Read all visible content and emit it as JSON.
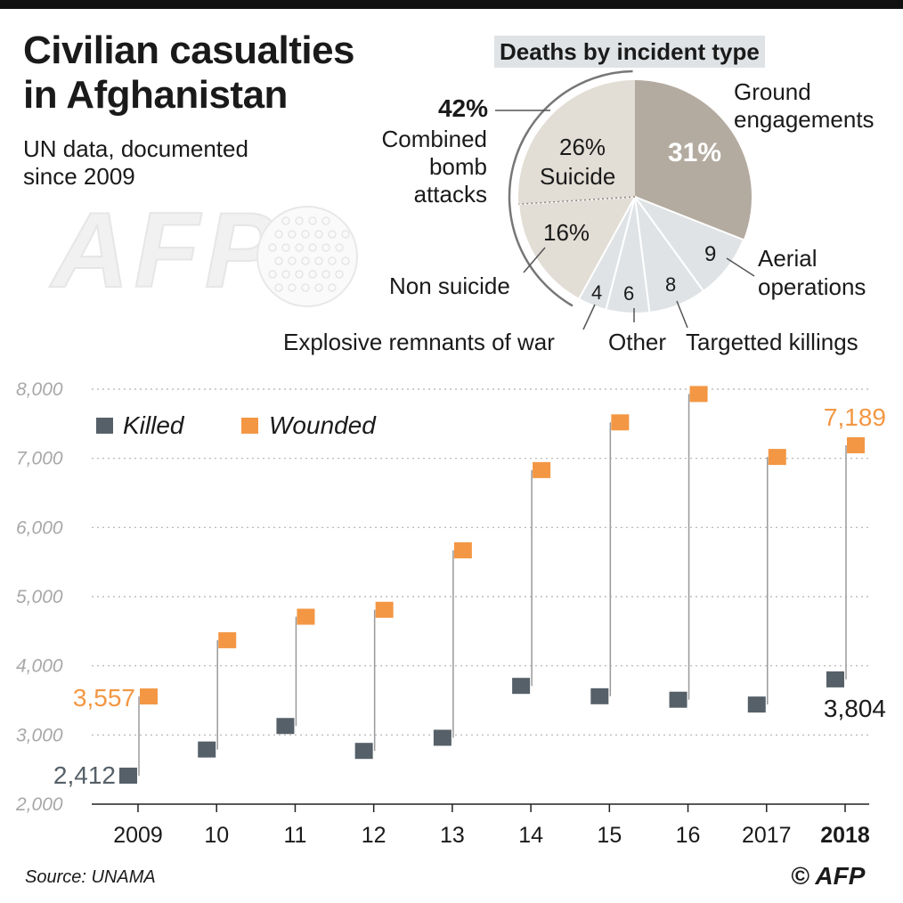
{
  "header": {
    "title": "Civilian casualties\nin Afghanistan",
    "subtitle": "UN data, documented\nsince 2009"
  },
  "watermark": {
    "text": "AFP"
  },
  "footer": {
    "source": "Source: UNAMA",
    "credit": "© AFP"
  },
  "colors": {
    "killed": "#566068",
    "wounded": "#f39744",
    "pie_ground": "#b4aba0",
    "pie_bomb": "#e2ddd5",
    "pie_other": "#dfe3e5",
    "grid": "#b0b0b0",
    "stem": "#9a9a9a"
  },
  "chart_data": [
    {
      "type": "pie",
      "title": "Deaths by incident type",
      "slices": [
        {
          "label": "Ground engagements",
          "value": 31,
          "display": "31%"
        },
        {
          "label": "Aerial operations",
          "value": 9,
          "display": "9"
        },
        {
          "label": "Targetted killings",
          "value": 8,
          "display": "8"
        },
        {
          "label": "Other",
          "value": 6,
          "display": "6"
        },
        {
          "label": "Explosive remnants of war",
          "value": 4,
          "display": "4"
        },
        {
          "label": "Non suicide",
          "value": 16,
          "display": "16%"
        },
        {
          "label": "Suicide",
          "value": 26,
          "display": "26%"
        }
      ],
      "group": {
        "label": "Combined bomb attacks",
        "value": 42,
        "display": "42%",
        "members": [
          "Non suicide",
          "Suicide"
        ]
      }
    },
    {
      "type": "scatter",
      "categories": [
        "2009",
        "10",
        "11",
        "12",
        "13",
        "14",
        "15",
        "16",
        "2017",
        "2018"
      ],
      "highlight_category": "2018",
      "series": [
        {
          "name": "Killed",
          "values": [
            2412,
            2790,
            3130,
            2770,
            2960,
            3710,
            3560,
            3510,
            3440,
            3804
          ]
        },
        {
          "name": "Wounded",
          "values": [
            3557,
            4370,
            4710,
            4810,
            5670,
            6830,
            7520,
            7930,
            7020,
            7189
          ]
        }
      ],
      "ylim": [
        2000,
        8000
      ],
      "yticks": [
        "2,000",
        "3,000",
        "4,000",
        "5,000",
        "6,000",
        "7,000",
        "8,000"
      ],
      "annotations": [
        {
          "series": "Killed",
          "index": 0,
          "text": "2,412"
        },
        {
          "series": "Wounded",
          "index": 0,
          "text": "3,557"
        },
        {
          "series": "Killed",
          "index": 9,
          "text": "3,804"
        },
        {
          "series": "Wounded",
          "index": 9,
          "text": "7,189"
        }
      ],
      "grid": true,
      "legend": "top-left"
    }
  ]
}
